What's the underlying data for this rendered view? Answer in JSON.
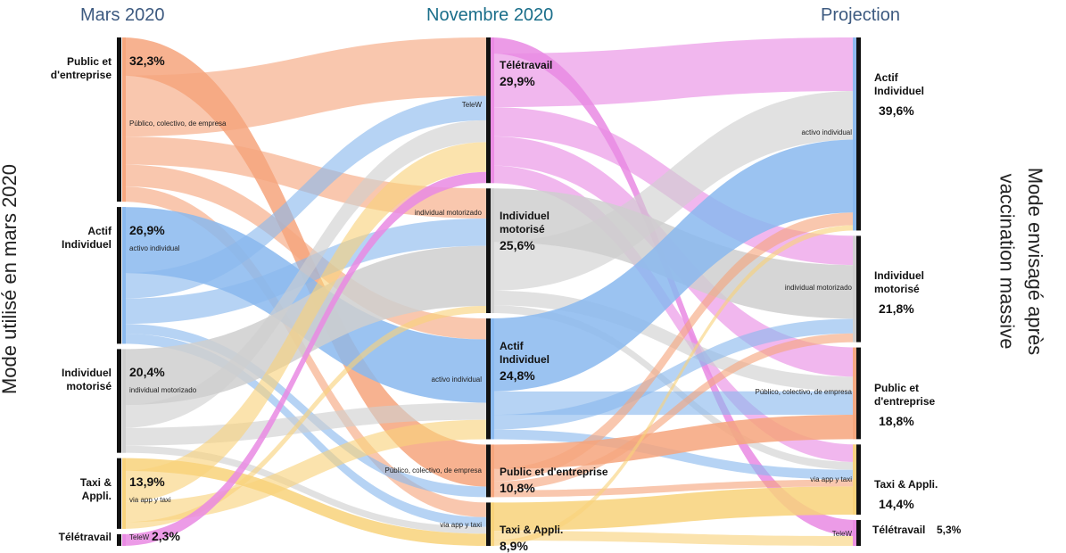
{
  "titles": {
    "left": "Mars 2020",
    "middle": "Novembre 2020",
    "right": "Projection"
  },
  "axis": {
    "left": "Mode utilisé en mars 2020",
    "right_line1": "Mode envisagé après",
    "right_line2": "vaccination massive"
  },
  "colors": {
    "public": "#f6a57c",
    "actif": "#89b8ee",
    "moto": "#cfcfcf",
    "taxi": "#f8d27a",
    "tele": "#e98ae3",
    "bar": "#111111"
  },
  "columns": {
    "left": [
      {
        "id": "public",
        "label": "Public et\nd'entreprise",
        "value": "32,3%",
        "sub": "Público, colectivo, de empresa"
      },
      {
        "id": "actif",
        "label": "Actif\nIndividuel",
        "value": "26,9%",
        "sub": "activo individual"
      },
      {
        "id": "moto",
        "label": "Individuel\nmotorisé",
        "value": "20,4%",
        "sub": "individual motorizado"
      },
      {
        "id": "taxi",
        "label": "Taxi &\nAppli.",
        "value": "13,9%",
        "sub": "via app y taxi"
      },
      {
        "id": "tele",
        "label": "Télétravail",
        "value": "2,3%",
        "sub": "TeleW"
      }
    ],
    "middle": [
      {
        "id": "tele",
        "label": "Télétravail",
        "value": "29,9%",
        "sub": "TeleW"
      },
      {
        "id": "moto",
        "label": "Individuel\nmotorisé",
        "value": "25,6%",
        "sub": "individual motorizado"
      },
      {
        "id": "actif",
        "label": "Actif\nIndividuel",
        "value": "24,8%",
        "sub": "activo individual"
      },
      {
        "id": "public",
        "label": "Public et  d'entreprise",
        "value": "10,8%",
        "sub": "Público, colectivo, de empresa"
      },
      {
        "id": "taxi",
        "label": "Taxi & Appli.",
        "value": "8,9%",
        "sub": "via app y taxi"
      }
    ],
    "right": [
      {
        "id": "actif",
        "label": "Actif\nIndividuel",
        "value": "39,6%",
        "sub": "activo individual"
      },
      {
        "id": "moto",
        "label": "Individuel\nmotorisé",
        "value": "21,8%",
        "sub": "individual motorizado"
      },
      {
        "id": "public",
        "label": "Public et\nd'entreprise",
        "value": "18,8%",
        "sub": "Público, colectivo, de empresa"
      },
      {
        "id": "taxi",
        "label": "Taxi & Appli.",
        "value": "14,4%",
        "sub": "via app y taxi"
      },
      {
        "id": "tele",
        "label": "Télétravail",
        "value": "5,3%",
        "sub": "TeleW"
      }
    ]
  }
}
